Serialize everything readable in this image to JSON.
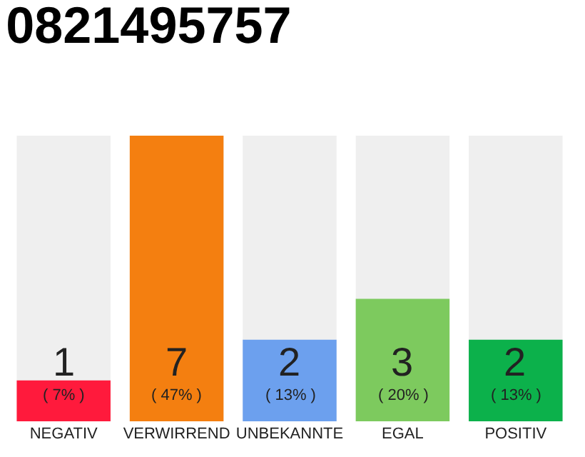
{
  "chart_data": {
    "type": "bar",
    "title": "0821495757",
    "categories": [
      "NEGATIV",
      "VERWIRREND",
      "UNBEKANNTE",
      "EGAL",
      "POSITIV"
    ],
    "values": [
      1,
      7,
      2,
      3,
      2
    ],
    "colors": [
      "#ff1a3c",
      "#f47f10",
      "#6ca0ee",
      "#7dca5e",
      "#0cb14b"
    ],
    "ylim": [
      0,
      7
    ],
    "data_labels": true,
    "tick_labels": "x",
    "grid": false,
    "annotations": [
      "( 7% )",
      "( 47% )",
      "( 13% )",
      "( 20% )",
      "( 13% )"
    ]
  }
}
